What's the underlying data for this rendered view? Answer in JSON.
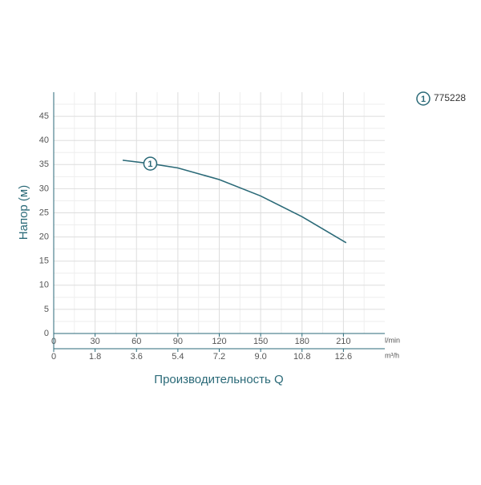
{
  "chart_data": {
    "type": "line",
    "y_label": "Напор (м)",
    "x_label": "Производительность Q",
    "x_unit": "l/min",
    "x2_unit": "m³/h",
    "xlim": [
      0,
      240
    ],
    "xticks": [
      0,
      30,
      60,
      90,
      120,
      150,
      180,
      210
    ],
    "x2lim": [
      0,
      14.4
    ],
    "x2ticks": [
      0,
      1.8,
      3.6,
      5.4,
      7.2,
      {
        "value": 9,
        "label": "9.0"
      },
      10.8,
      12.6
    ],
    "ylim": [
      0,
      50
    ],
    "yticks": [
      0,
      5,
      10,
      15,
      20,
      25,
      30,
      35,
      40,
      45
    ],
    "grid": true,
    "x": [
      50,
      70,
      90,
      120,
      150,
      180,
      212
    ],
    "series": [
      {
        "name": "775228",
        "label": "1",
        "color": "#2b6a78",
        "values": [
          35.9,
          35.2,
          34.3,
          31.9,
          28.5,
          24.2,
          18.8
        ]
      }
    ]
  }
}
